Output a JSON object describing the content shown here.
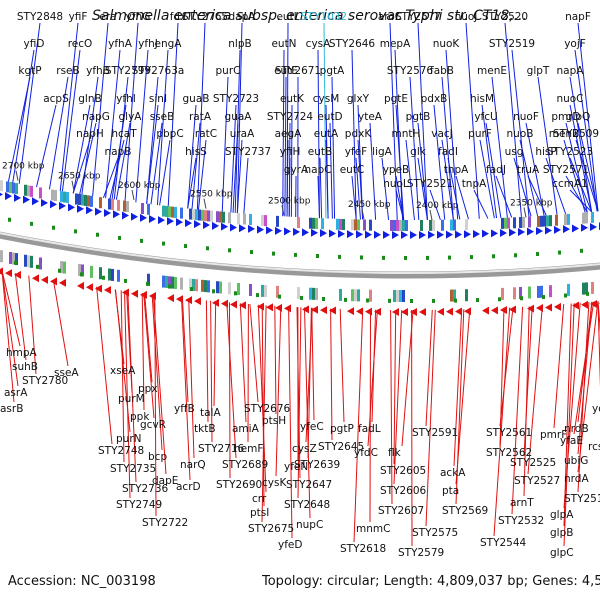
{
  "title": "Salmonella enterica subsp. enterica serovar Typhi str. CT18,...",
  "footer": {
    "accession": "Accession: NC_003198",
    "summary": "Topology: circular; Length: 4,809,037 bp; Genes: 4,502"
  },
  "colors": {
    "forward": "#1020e0",
    "reverse": "#e01010",
    "highlight": "#30b8d8",
    "backbone": "#999999",
    "marker": "#1a8a1a"
  },
  "scale_ticks": [
    "2700 kbp",
    "2650 kbp",
    "2600 kbp",
    "2550 kbp",
    "2500 kbp",
    "2450 kbp",
    "2400 kbp",
    "2350 kbp"
  ],
  "top_labels": [
    "STY2848",
    "yfiF",
    "era",
    "yfhG",
    "fdx",
    "STY2765",
    "dapA",
    "eutL",
    "STY1032",
    "aroC",
    "STY2577",
    "nuoJ",
    "STY2520",
    "napF",
    "yfiD",
    "recO",
    "yfhA",
    "yfhJ",
    "engA",
    "nlpB",
    "eutN",
    "cysA",
    "STY2646",
    "mepA",
    "nuoK",
    "STY2519",
    "yojF",
    "kgtP",
    "rseB",
    "yfhB",
    "STY2799",
    "STY2763a",
    "purC",
    "eutE",
    "STY2671",
    "pgtA",
    "STY2576",
    "fabB",
    "menE",
    "glpT",
    "napA",
    "acpS",
    "glnB",
    "yfhI",
    "sinI",
    "guaB",
    "STY2723",
    "eutK",
    "cysM",
    "glxY",
    "pgtE",
    "pdxB",
    "hisM",
    "nuoC",
    "napG",
    "glyA",
    "sseB",
    "ratA",
    "guaA",
    "STY2724",
    "eutD",
    "yteA",
    "pgtB",
    "yfcU",
    "nuoF",
    "pmrD",
    "glpQ",
    "napH",
    "hcaT",
    "pbpC",
    "ratC",
    "uraA",
    "aegA",
    "eutA",
    "pdxK",
    "mntH",
    "vacJ",
    "purF",
    "nuoB",
    "menB",
    "STY2509",
    "napB",
    "hisS",
    "STY2737",
    "yfiH",
    "eutB",
    "yfeF",
    "ligA",
    "glk",
    "fadI",
    "usg",
    "hisP",
    "STY2523",
    "gyrA",
    "napC",
    "eutC",
    "ypeB",
    "tnpA",
    "fadJ",
    "truA",
    "STY2571",
    "nuoL",
    "STY2521",
    "tnpA",
    "ccmA1",
    "folC",
    "STY2570",
    "nuoN",
    "ccmB1"
  ],
  "top_highlight": "STY1032",
  "bottom_labels": [
    "hmpA",
    "sseA",
    "xseA",
    "suhB",
    "STY2780",
    "asrA",
    "asrB",
    "ppx",
    "purM",
    "ppk",
    "purN",
    "gcvR",
    "yffB",
    "tktB",
    "talA",
    "STY2748",
    "bcp",
    "narQ",
    "STY2716",
    "STY2735",
    "dapE",
    "acrD",
    "STY2736",
    "STY2749",
    "STY2722",
    "STY2676",
    "amiA",
    "ptsH",
    "hemF",
    "cysZ",
    "STY2689",
    "yfeC",
    "yfeN",
    "STY2690",
    "cysK",
    "pgtP",
    "STY2645",
    "fadL",
    "STY2639",
    "yfdC",
    "crr",
    "STY2647",
    "ptsI",
    "STY2648",
    "STY2675",
    "nupC",
    "yfeD",
    "STY2591",
    "STY2561",
    "flk",
    "STY2562",
    "STY2605",
    "ackA",
    "STY2606",
    "pta",
    "STY2607",
    "mnmC",
    "STY2569",
    "STY2575",
    "STY2618",
    "STY2579",
    "pmrF",
    "nrdB",
    "yojN",
    "yfaE",
    "rcsB",
    "STY2525",
    "ubiG",
    "STY2527",
    "nrdA",
    "arnT",
    "STY2510",
    "STY2532",
    "glpA",
    "STY2544",
    "glpB",
    "glpC"
  ]
}
